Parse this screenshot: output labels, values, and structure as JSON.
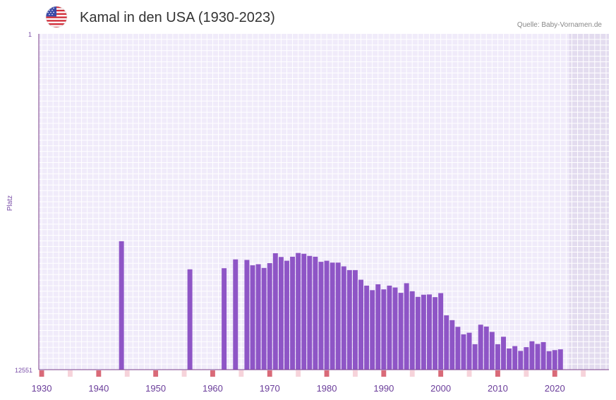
{
  "header": {
    "title": "Kamal in den USA (1930-2023)",
    "source": "Quelle: Baby-Vornamen.de",
    "flag_icon": "us-flag-icon"
  },
  "colors": {
    "bar": "#8e55c6",
    "plot_bg": "#f0ebfa",
    "shade_bg": "#e3dcef",
    "grid": "#ffffff",
    "axis": "#7a3d8a",
    "decade_mark": "#d96a78",
    "half_mark": "#f6d3da"
  },
  "chart_data": {
    "type": "bar",
    "title": "Kamal in den USA (1930-2023)",
    "ylabel": "Platz",
    "xlabel": "",
    "y_axis_reversed": true,
    "ylim": [
      1,
      12551
    ],
    "y_tick_labels": [
      "1",
      "12551"
    ],
    "xlim": [
      1929.5,
      2029.5
    ],
    "x_tick_labels": [
      "1930",
      "1940",
      "1950",
      "1960",
      "1970",
      "1980",
      "1990",
      "2000",
      "2010",
      "2020"
    ],
    "shaded_from_year": 2023,
    "x": [
      1944,
      1956,
      1962,
      1964,
      1966,
      1967,
      1968,
      1969,
      1970,
      1971,
      1972,
      1973,
      1974,
      1975,
      1976,
      1977,
      1978,
      1979,
      1980,
      1981,
      1982,
      1983,
      1984,
      1985,
      1986,
      1987,
      1988,
      1989,
      1990,
      1991,
      1992,
      1993,
      1994,
      1995,
      1996,
      1997,
      1998,
      1999,
      2000,
      2001,
      2002,
      2003,
      2004,
      2005,
      2006,
      2007,
      2008,
      2009,
      2010,
      2011,
      2012,
      2013,
      2014,
      2015,
      2016,
      2017,
      2018,
      2019,
      2020,
      2021
    ],
    "values": [
      7750,
      8800,
      8760,
      8430,
      8450,
      8650,
      8610,
      8750,
      8570,
      8200,
      8340,
      8480,
      8330,
      8190,
      8220,
      8300,
      8330,
      8520,
      8480,
      8550,
      8550,
      8690,
      8830,
      8830,
      9190,
      9410,
      9580,
      9360,
      9550,
      9410,
      9480,
      9680,
      9320,
      9620,
      9830,
      9750,
      9740,
      9840,
      9690,
      10520,
      10700,
      10950,
      11230,
      11170,
      11600,
      10870,
      10940,
      11140,
      11600,
      11320,
      11760,
      11670,
      11850,
      11710,
      11490,
      11590,
      11520,
      11860,
      11820,
      11790
    ]
  }
}
